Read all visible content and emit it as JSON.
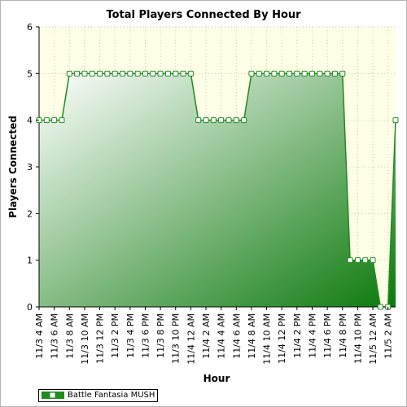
{
  "chart_data": {
    "type": "area",
    "title": "Total Players Connected By Hour",
    "xlabel": "Hour",
    "ylabel": "Players Connected",
    "ylim": [
      0,
      6
    ],
    "yticks": [
      0,
      1,
      2,
      3,
      4,
      5,
      6
    ],
    "grid": true,
    "legend_position": "bottom-left",
    "tick_labels": [
      "11/3 4 AM",
      "11/3 6 AM",
      "11/3 8 AM",
      "11/3 10 AM",
      "11/3 12 PM",
      "11/3 2 PM",
      "11/3 4 PM",
      "11/3 6 PM",
      "11/3 8 PM",
      "11/3 10 PM",
      "11/4 12 AM",
      "11/4 2 AM",
      "11/4 4 AM",
      "11/4 6 AM",
      "11/4 8 AM",
      "11/4 10 AM",
      "11/4 12 PM",
      "11/4 2 PM",
      "11/4 4 PM",
      "11/4 6 PM",
      "11/4 8 PM",
      "11/4 10 PM",
      "11/5 12 AM",
      "11/5 2 AM"
    ],
    "series": [
      {
        "name": "Battle Fantasia MUSH",
        "color": "#1e8c1e",
        "values": [
          4,
          4,
          4,
          4,
          5,
          5,
          5,
          5,
          5,
          5,
          5,
          5,
          5,
          5,
          5,
          5,
          5,
          5,
          5,
          5,
          5,
          4,
          4,
          4,
          4,
          4,
          4,
          4,
          5,
          5,
          5,
          5,
          5,
          5,
          5,
          5,
          5,
          5,
          5,
          5,
          5,
          1,
          1,
          1,
          1,
          0,
          0,
          4
        ]
      }
    ]
  },
  "colors": {
    "plot_background": "#ffffe8",
    "fill_light": "#ffffff",
    "fill_dark": "#0c7a0c",
    "line": "#1e8c1e"
  }
}
